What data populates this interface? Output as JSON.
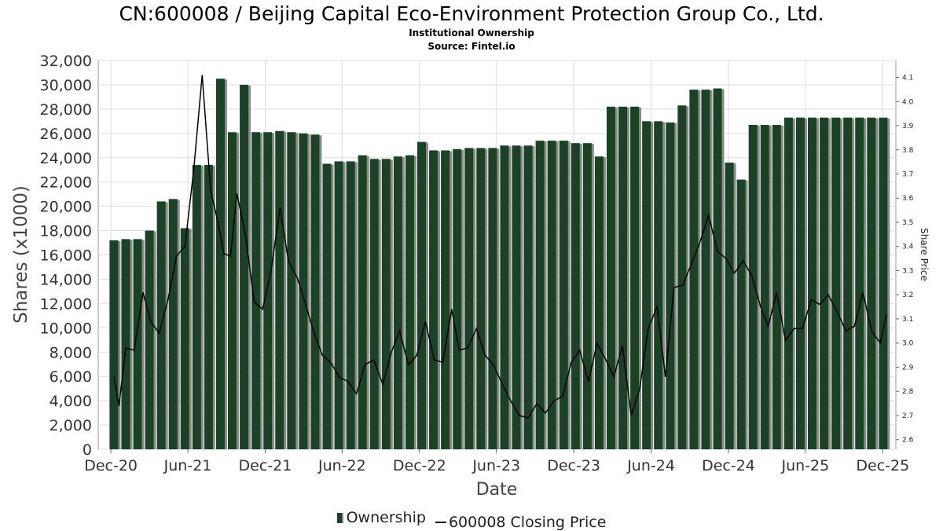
{
  "header": {
    "title": "CN:600008 / Beijing Capital Eco-Environment Protection Group Co., Ltd.",
    "subtitle": "Institutional Ownership",
    "source": "Source: Fintel.io"
  },
  "legend": {
    "ownership_label": "Ownership",
    "price_label": "600008 Closing Price"
  },
  "colors": {
    "bar": "#1a4224",
    "bar_shadow": "#8a8a8a",
    "line": "#000000",
    "grid": "#dddddd"
  },
  "chart_data": {
    "type": "bar",
    "title": "CN:600008 / Beijing Capital Eco-Environment Protection Group Co., Ltd.",
    "subtitle": "Institutional Ownership",
    "xlabel": "Date",
    "ylabel": "Shares (x1000)",
    "y2label": "Share Price",
    "ylim": [
      0,
      32000
    ],
    "y2lim": [
      2.56,
      4.17
    ],
    "xlim": [
      "2020-11-01",
      "2026-01-01"
    ],
    "grid": true,
    "legend_position": "bottom",
    "x_ticks": [
      {
        "label": "Dec-20",
        "date": "2020-12-01"
      },
      {
        "label": "Jun-21",
        "date": "2021-06-01"
      },
      {
        "label": "Dec-21",
        "date": "2021-12-01"
      },
      {
        "label": "Jun-22",
        "date": "2022-06-01"
      },
      {
        "label": "Dec-22",
        "date": "2022-12-01"
      },
      {
        "label": "Jun-23",
        "date": "2023-06-01"
      },
      {
        "label": "Dec-23",
        "date": "2023-12-01"
      },
      {
        "label": "Jun-24",
        "date": "2024-06-01"
      },
      {
        "label": "Dec-24",
        "date": "2024-12-01"
      },
      {
        "label": "Jun-25",
        "date": "2025-06-01"
      },
      {
        "label": "Dec-25",
        "date": "2025-12-01"
      }
    ],
    "y_ticks": [
      "0",
      "2,000",
      "4,000",
      "6,000",
      "8,000",
      "10,000",
      "12,000",
      "14,000",
      "16,000",
      "18,000",
      "20,000",
      "22,000",
      "24,000",
      "26,000",
      "28,000",
      "30,000",
      "32,000"
    ],
    "y_tick_values": [
      0,
      2000,
      4000,
      6000,
      8000,
      10000,
      12000,
      14000,
      16000,
      18000,
      20000,
      22000,
      24000,
      26000,
      28000,
      30000,
      32000
    ],
    "y2_ticks": [
      "2.6",
      "2.7",
      "2.8",
      "2.9",
      "3.0",
      "3.1",
      "3.2",
      "3.3",
      "3.4",
      "3.5",
      "3.6",
      "3.7",
      "3.8",
      "3.9",
      "4.0",
      "4.1"
    ],
    "y2_tick_values": [
      2.6,
      2.7,
      2.8,
      2.9,
      3.0,
      3.1,
      3.2,
      3.3,
      3.4,
      3.5,
      3.6,
      3.7,
      3.8,
      3.9,
      4.0,
      4.1
    ],
    "series": [
      {
        "name": "Ownership",
        "axis": "left",
        "kind": "bar",
        "x": [
          "2020-12-08",
          "2021-01-05",
          "2021-02-02",
          "2021-03-02",
          "2021-03-30",
          "2021-04-27",
          "2021-05-25",
          "2021-06-22",
          "2021-07-20",
          "2021-08-17",
          "2021-09-14",
          "2021-10-12",
          "2021-11-09",
          "2021-12-07",
          "2022-01-04",
          "2022-02-01",
          "2022-03-01",
          "2022-03-29",
          "2022-04-26",
          "2022-05-24",
          "2022-06-21",
          "2022-07-19",
          "2022-08-16",
          "2022-09-13",
          "2022-10-11",
          "2022-11-08",
          "2022-12-06",
          "2023-01-03",
          "2023-01-31",
          "2023-02-28",
          "2023-03-28",
          "2023-04-25",
          "2023-05-23",
          "2023-06-20",
          "2023-07-18",
          "2023-08-15",
          "2023-09-12",
          "2023-10-10",
          "2023-11-07",
          "2023-12-05",
          "2024-01-02",
          "2024-01-30",
          "2024-02-27",
          "2024-03-26",
          "2024-04-23",
          "2024-05-21",
          "2024-06-18",
          "2024-07-16",
          "2024-08-13",
          "2024-09-10",
          "2024-10-08",
          "2024-11-05",
          "2024-12-03",
          "2024-12-31",
          "2025-01-28",
          "2025-02-25",
          "2025-03-25",
          "2025-04-22",
          "2025-05-20",
          "2025-06-17",
          "2025-07-15",
          "2025-08-12",
          "2025-09-09",
          "2025-10-07",
          "2025-11-04",
          "2025-12-02"
        ],
        "values": [
          17200,
          17300,
          17300,
          18000,
          20400,
          20600,
          18200,
          23400,
          23400,
          30500,
          26100,
          30000,
          26100,
          26100,
          26200,
          26100,
          26000,
          25900,
          23500,
          23700,
          23700,
          24200,
          23900,
          23900,
          24100,
          24200,
          25300,
          24600,
          24600,
          24700,
          24800,
          24800,
          24800,
          25000,
          25000,
          25000,
          25400,
          25400,
          25400,
          25200,
          25200,
          24100,
          28200,
          28200,
          28200,
          27000,
          27000,
          26900,
          28300,
          29600,
          29600,
          29700,
          23600,
          22200,
          26700,
          26700,
          26700,
          27300,
          27300,
          27300,
          27300,
          27300,
          27300,
          27300,
          27300,
          27300
        ]
      },
      {
        "name": "600008 Closing Price",
        "axis": "right",
        "kind": "line",
        "x": [
          "2020-12-08",
          "2020-12-20",
          "2021-01-05",
          "2021-01-25",
          "2021-02-15",
          "2021-03-05",
          "2021-03-25",
          "2021-04-15",
          "2021-05-05",
          "2021-05-25",
          "2021-06-15",
          "2021-07-05",
          "2021-07-25",
          "2021-08-10",
          "2021-08-25",
          "2021-09-10",
          "2021-09-25",
          "2021-10-15",
          "2021-11-05",
          "2021-11-25",
          "2021-12-15",
          "2022-01-05",
          "2022-01-25",
          "2022-02-15",
          "2022-03-05",
          "2022-03-25",
          "2022-04-15",
          "2022-05-05",
          "2022-05-25",
          "2022-06-15",
          "2022-07-05",
          "2022-07-25",
          "2022-08-15",
          "2022-09-05",
          "2022-09-25",
          "2022-10-15",
          "2022-11-05",
          "2022-11-25",
          "2022-12-15",
          "2023-01-05",
          "2023-01-25",
          "2023-02-15",
          "2023-03-05",
          "2023-03-25",
          "2023-04-15",
          "2023-05-05",
          "2023-05-25",
          "2023-06-15",
          "2023-07-05",
          "2023-07-25",
          "2023-08-15",
          "2023-09-05",
          "2023-09-25",
          "2023-10-15",
          "2023-11-05",
          "2023-11-25",
          "2023-12-15",
          "2024-01-05",
          "2024-01-25",
          "2024-02-15",
          "2024-03-05",
          "2024-03-25",
          "2024-04-15",
          "2024-05-05",
          "2024-05-25",
          "2024-06-15",
          "2024-07-05",
          "2024-07-25",
          "2024-08-15",
          "2024-09-05",
          "2024-09-25",
          "2024-10-15",
          "2024-11-05",
          "2024-11-25",
          "2024-12-15",
          "2025-01-05",
          "2025-01-25",
          "2025-02-15",
          "2025-03-05",
          "2025-03-25",
          "2025-04-15",
          "2025-05-05",
          "2025-05-25",
          "2025-06-15",
          "2025-07-05",
          "2025-07-25",
          "2025-08-15",
          "2025-09-05",
          "2025-09-25",
          "2025-10-15",
          "2025-11-05",
          "2025-11-25",
          "2025-12-10"
        ],
        "values": [
          2.86,
          2.74,
          2.98,
          2.97,
          3.21,
          3.09,
          3.04,
          3.18,
          3.36,
          3.4,
          3.72,
          4.11,
          3.63,
          3.51,
          3.37,
          3.36,
          3.62,
          3.45,
          3.17,
          3.14,
          3.3,
          3.56,
          3.34,
          3.27,
          3.17,
          3.05,
          2.95,
          2.92,
          2.86,
          2.84,
          2.79,
          2.91,
          2.93,
          2.83,
          2.96,
          3.05,
          2.91,
          2.95,
          3.09,
          2.93,
          2.92,
          3.14,
          2.97,
          2.98,
          3.06,
          2.95,
          2.91,
          2.83,
          2.76,
          2.7,
          2.69,
          2.75,
          2.71,
          2.76,
          2.78,
          2.92,
          2.97,
          2.84,
          3.0,
          2.93,
          2.86,
          2.99,
          2.7,
          2.81,
          3.06,
          3.15,
          2.86,
          3.23,
          3.24,
          3.33,
          3.42,
          3.53,
          3.38,
          3.35,
          3.29,
          3.34,
          3.28,
          3.15,
          3.07,
          3.21,
          3.01,
          3.06,
          3.06,
          3.18,
          3.16,
          3.2,
          3.13,
          3.05,
          3.07,
          3.21,
          3.05,
          3.0,
          3.12
        ]
      }
    ]
  }
}
